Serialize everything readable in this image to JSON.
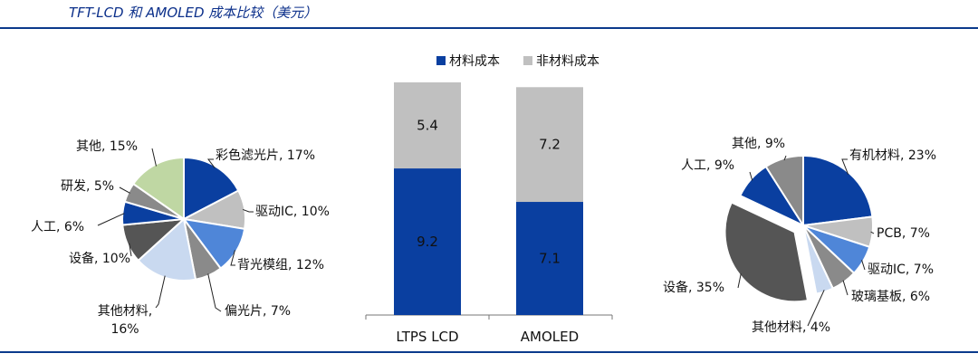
{
  "page": {
    "title": "TFT-LCD 和 AMOLED 成本比较（美元）"
  },
  "colors": {
    "navy": "#0a3fa0",
    "gray_light": "#c0c0c0",
    "gray_mid": "#8a8a8a",
    "gray_dark": "#555555",
    "blue_mid": "#4f86d8",
    "blue_light": "#c9d9f0",
    "green_light": "#bfd7a3",
    "rule": "#0b3a8c"
  },
  "chart_data": [
    {
      "id": "tft-lcd-pie",
      "type": "pie",
      "title": "",
      "slices": [
        {
          "label": "彩色滤光片, 17%",
          "value": 17,
          "color": "#0a3fa0"
        },
        {
          "label": "驱动IC, 10%",
          "value": 10,
          "color": "#c0c0c0"
        },
        {
          "label": "背光模组, 12%",
          "value": 12,
          "color": "#4f86d8"
        },
        {
          "label": "偏光片, 7%",
          "value": 7,
          "color": "#8a8a8a"
        },
        {
          "label": "其他材料, 16%",
          "value": 16,
          "color": "#c9d9f0"
        },
        {
          "label": "设备, 10%",
          "value": 10,
          "color": "#555555"
        },
        {
          "label": "人工, 6%",
          "value": 6,
          "color": "#0a3fa0"
        },
        {
          "label": "研发, 5%",
          "value": 5,
          "color": "#8a8a8a"
        },
        {
          "label": "其他, 15%",
          "value": 15,
          "color": "#bfd7a3"
        }
      ]
    },
    {
      "id": "cost-stacked-bar",
      "type": "bar",
      "stacked": true,
      "title": "",
      "legend_position": "top",
      "categories": [
        "LTPS LCD",
        "AMOLED"
      ],
      "series": [
        {
          "name": "材料成本",
          "values": [
            9.2,
            7.1
          ],
          "color": "#0a3fa0"
        },
        {
          "name": "非材料成本",
          "values": [
            5.4,
            7.2
          ],
          "color": "#c0c0c0"
        }
      ],
      "ylim": [
        0,
        15
      ],
      "xlabel": "",
      "ylabel": ""
    },
    {
      "id": "amoled-pie",
      "type": "pie",
      "title": "",
      "slices": [
        {
          "label": "有机材料, 23%",
          "value": 23,
          "color": "#0a3fa0",
          "exploded": false
        },
        {
          "label": "PCB, 7%",
          "value": 7,
          "color": "#c0c0c0",
          "exploded": false
        },
        {
          "label": "驱动IC, 7%",
          "value": 7,
          "color": "#4f86d8",
          "exploded": false
        },
        {
          "label": "玻璃基板, 6%",
          "value": 6,
          "color": "#8a8a8a",
          "exploded": false
        },
        {
          "label": "其他材料, 4%",
          "value": 4,
          "color": "#c9d9f0",
          "exploded": false
        },
        {
          "label": "设备, 35%",
          "value": 35,
          "color": "#555555",
          "exploded": true
        },
        {
          "label": "人工, 9%",
          "value": 9,
          "color": "#0a3fa0",
          "exploded": false
        },
        {
          "label": "其他, 9%",
          "value": 9,
          "color": "#8a8a8a",
          "exploded": false
        }
      ]
    }
  ]
}
